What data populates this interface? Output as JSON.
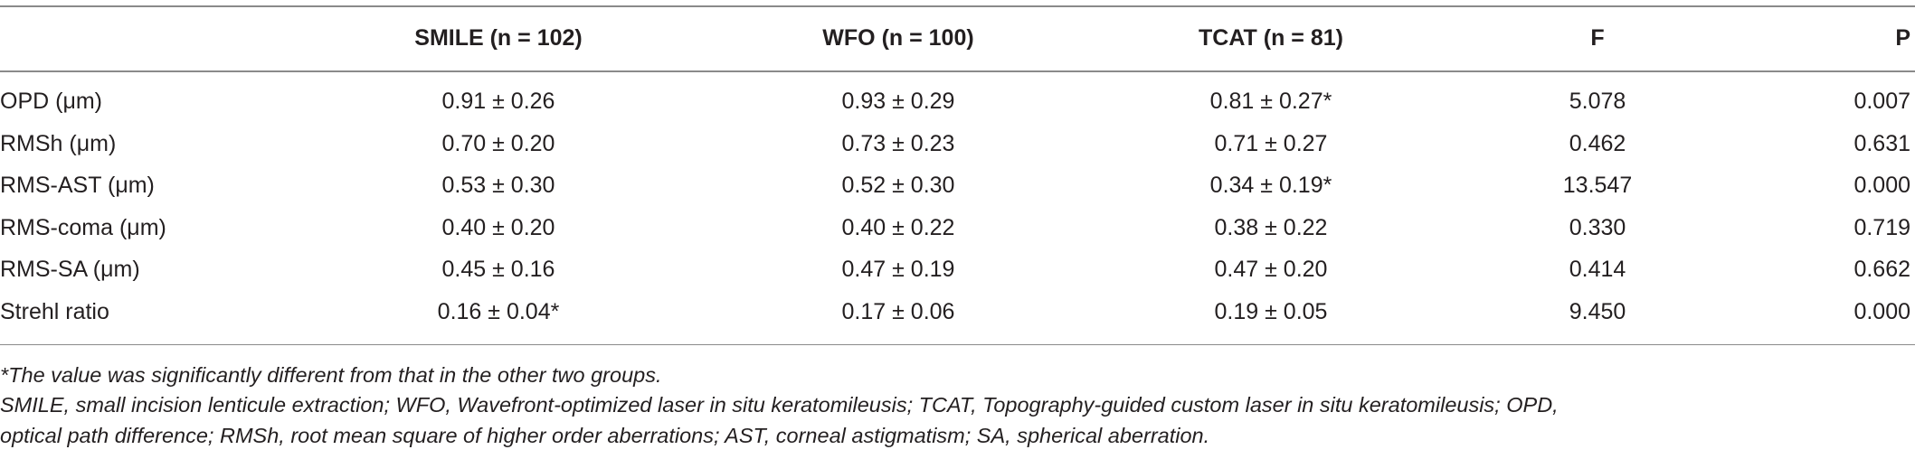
{
  "table": {
    "header": [
      "SMILE (n = 102)",
      "WFO (n = 100)",
      "TCAT (n = 81)",
      "F",
      "P"
    ],
    "rows": [
      [
        "OPD (μm)",
        "0.91 ± 0.26",
        "0.93 ± 0.29",
        "0.81 ± 0.27*",
        "5.078",
        "0.007"
      ],
      [
        "RMSh (μm)",
        "0.70 ± 0.20",
        "0.73 ± 0.23",
        "0.71 ± 0.27",
        "0.462",
        "0.631"
      ],
      [
        "RMS-AST (μm)",
        "0.53 ± 0.30",
        "0.52 ± 0.30",
        "0.34 ± 0.19*",
        "13.547",
        "0.000"
      ],
      [
        "RMS-coma (μm)",
        "0.40 ± 0.20",
        "0.40 ± 0.22",
        "0.38 ± 0.22",
        "0.330",
        "0.719"
      ],
      [
        "RMS-SA (μm)",
        "0.45 ± 0.16",
        "0.47 ± 0.19",
        "0.47 ± 0.20",
        "0.414",
        "0.662"
      ],
      [
        "Strehl ratio",
        "0.16 ± 0.04*",
        "0.17 ± 0.06",
        "0.19 ± 0.05",
        "9.450",
        "0.000"
      ]
    ]
  },
  "footnotes": [
    "*The value was significantly different from that in the other two groups.",
    "SMILE, small incision lenticule extraction; WFO, Wavefront-optimized laser in situ keratomileusis; TCAT, Topography-guided custom laser in situ keratomileusis; OPD,",
    "optical path difference; RMSh, root mean square of higher order aberrations; AST, corneal astigmatism; SA, spherical aberration."
  ]
}
